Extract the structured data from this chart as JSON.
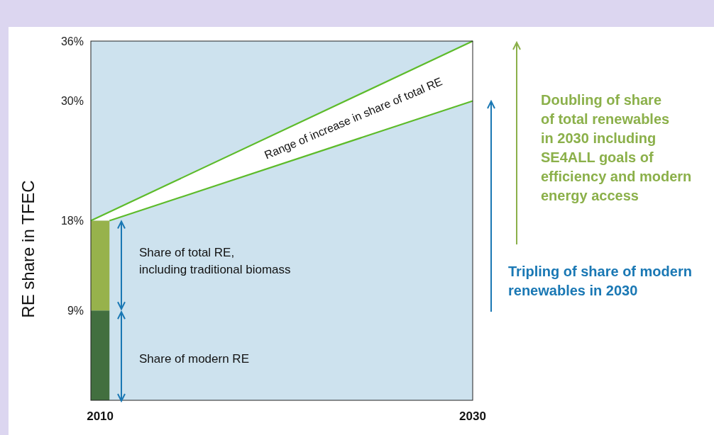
{
  "chart_data": {
    "type": "line",
    "ylabel": "RE share in TFEC",
    "xlim": [
      2009.5,
      2030
    ],
    "xticks": [
      2010,
      2030
    ],
    "ylim": [
      0,
      36
    ],
    "yticks": [
      {
        "value": 9,
        "label": "9%"
      },
      {
        "value": 18,
        "label": "18%"
      },
      {
        "value": 30,
        "label": "30%"
      },
      {
        "value": 36,
        "label": "36%"
      }
    ],
    "stacked": true,
    "grid": false,
    "series": [
      {
        "type": "bar",
        "x": [
          2010
        ],
        "color": "#426f3f",
        "values": [
          9
        ]
      },
      {
        "type": "bar",
        "x": [
          2010
        ],
        "color": "#97b24c",
        "values": [
          9
        ]
      },
      {
        "x": [
          2009.5,
          2030
        ],
        "color": "#5dbb2a",
        "values": [
          18,
          36
        ]
      },
      {
        "x": [
          2010.5,
          2030
        ],
        "color": "#5dbb2a",
        "values": [
          18,
          30
        ]
      }
    ],
    "annotations": [
      "Range of increase in share of total RE",
      "Share of total RE,\nincluding traditional biomass",
      "Share of modern RE",
      "Doubling of share\nof total renewables\nin 2030 including\nSE4ALL goals of\nefficiency and modern\nenergy access",
      "Tripling of share of modern\nrenewables in 2030"
    ]
  }
}
